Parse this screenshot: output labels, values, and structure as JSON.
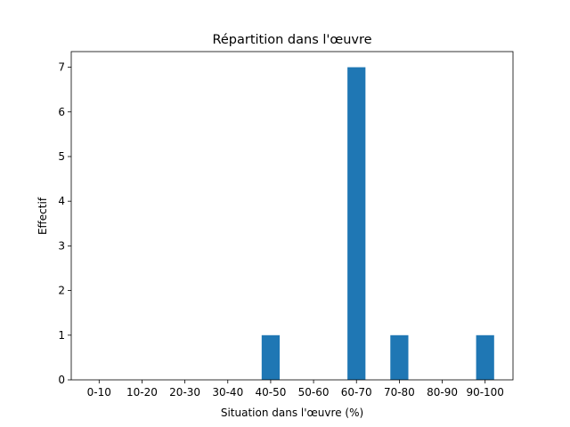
{
  "chart_data": {
    "type": "bar",
    "title": "Répartition dans l'œuvre",
    "x_label": "Situation dans l'œuvre (%)",
    "y_label": "Effectif",
    "categories": [
      "0-10",
      "10-20",
      "20-30",
      "30-40",
      "40-50",
      "50-60",
      "60-70",
      "70-80",
      "80-90",
      "90-100"
    ],
    "values": [
      0,
      0,
      0,
      0,
      1,
      0,
      7,
      1,
      0,
      1
    ],
    "color": "#1f77b4",
    "ylim": [
      0,
      7.35
    ],
    "yticks": [
      0,
      1,
      2,
      3,
      4,
      5,
      6,
      7
    ],
    "grid": false
  }
}
